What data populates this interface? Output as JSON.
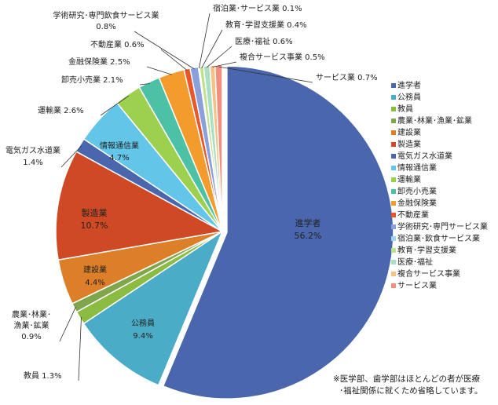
{
  "chart_data": {
    "type": "pie",
    "categories": [
      "進学者",
      "公務員",
      "教員",
      "農業･林業･漁業･鉱業",
      "建設業",
      "製造業",
      "電気ガス水道業",
      "情報通信業",
      "運輸業",
      "卸売小売業",
      "金融保険業",
      "不動産業",
      "学術研究･専門サービス業",
      "宿泊業･飲食サービス業",
      "教育･学習支援業",
      "医療･福祉",
      "複合サービス事業",
      "サービス業"
    ],
    "values": [
      56.2,
      9.4,
      1.3,
      0.9,
      4.4,
      10.7,
      1.4,
      4.7,
      2.6,
      2.1,
      2.5,
      0.6,
      0.8,
      0.1,
      0.4,
      0.6,
      0.5,
      0.7
    ],
    "colors": [
      "#4a66ad",
      "#4aacc6",
      "#8cbb41",
      "#7fa54d",
      "#dd7f28",
      "#cf4a24",
      "#4a66ad",
      "#63c6e8",
      "#9dd04e",
      "#4cc1a6",
      "#f39b2c",
      "#e8562a",
      "#8a9fdb",
      "#9fd6eb",
      "#c0e08a",
      "#a9e0c4",
      "#f7c184",
      "#f28f7e"
    ],
    "legend_position": "right",
    "labels": [
      {
        "name": "進学者",
        "value": "56.2%"
      },
      {
        "name": "公務員",
        "value": "9.4%"
      },
      {
        "text": "教員 1.3%"
      },
      {
        "lines": [
          "農業･林業･",
          "漁業･鉱業",
          "0.9%"
        ]
      },
      {
        "name": "建設業",
        "value": "4.4%"
      },
      {
        "name": "製造業",
        "value": "10.7%"
      },
      {
        "lines": [
          "電気ガス水道業",
          "1.4%"
        ]
      },
      {
        "name": "情報通信業",
        "value": "4.7%"
      },
      {
        "text": "運輸業 2.6%"
      },
      {
        "text": "卸売小売業 2.1%"
      },
      {
        "text": "金融保険業 2.5%"
      },
      {
        "text": "不動産業 0.6%"
      },
      {
        "lines": [
          "学術研究･専門飲食サービス業",
          "0.8%"
        ]
      },
      {
        "text": "宿泊業･サービス業 0.1%"
      },
      {
        "text": "教育･学習支援業 0.4%"
      },
      {
        "text": "医療･福祉 0.6%"
      },
      {
        "text": "複合サービス事業 0.5%"
      },
      {
        "text": "サービス業 0.7%"
      }
    ]
  },
  "note": {
    "line1": "※医学部、歯学部はほとんどの者が医療",
    "line2": "･福祉関係に就くため省略しています。"
  }
}
